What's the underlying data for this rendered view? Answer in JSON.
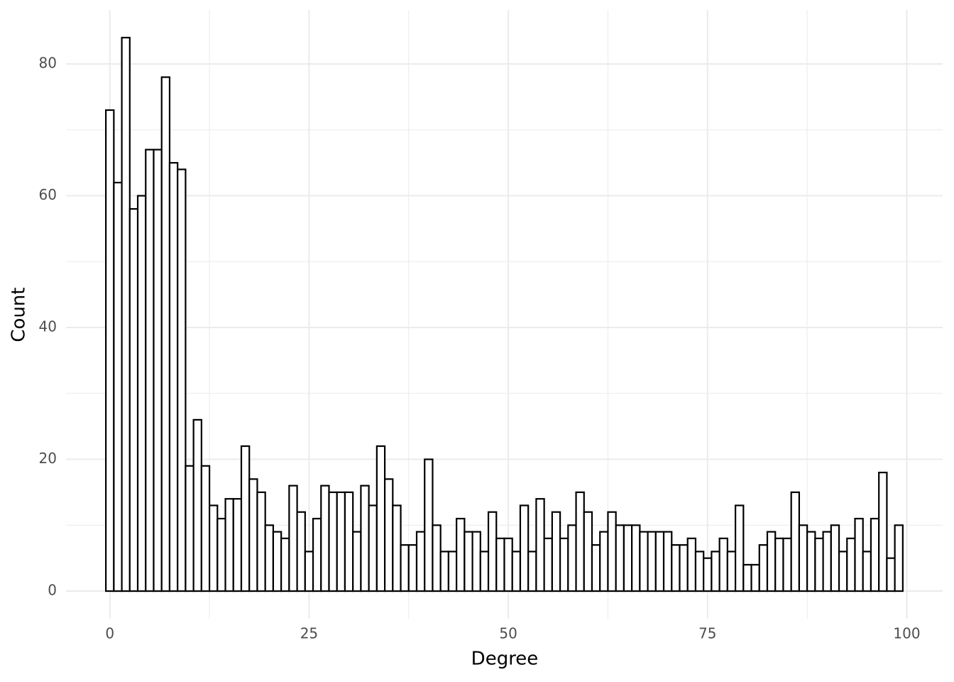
{
  "chart_data": {
    "type": "histogram",
    "x_label": "Degree",
    "y_label": "Count",
    "bins": [
      -0.5,
      0.5,
      1.5,
      2.5,
      3.5,
      4.5,
      5.5,
      6.5,
      7.5,
      8.5,
      9.5,
      10.5,
      11.5,
      12.5,
      13.5,
      14.5,
      15.5,
      16.5,
      17.5,
      18.5,
      19.5,
      20.5,
      21.5,
      22.5,
      23.5,
      24.5,
      25.5,
      26.5,
      27.5,
      28.5,
      29.5,
      30.5,
      31.5,
      32.5,
      33.5,
      34.5,
      35.5,
      36.5,
      37.5,
      38.5,
      39.5,
      40.5,
      41.5,
      42.5,
      43.5,
      44.5,
      45.5,
      46.5,
      47.5,
      48.5,
      49.5,
      50.5,
      51.5,
      52.5,
      53.5,
      54.5,
      55.5,
      56.5,
      57.5,
      58.5,
      59.5,
      60.5,
      61.5,
      62.5,
      63.5,
      64.5,
      65.5,
      66.5,
      67.5,
      68.5,
      69.5,
      70.5,
      71.5,
      72.5,
      73.5,
      74.5,
      75.5,
      76.5,
      77.5,
      78.5,
      79.5,
      80.5,
      81.5,
      82.5,
      83.5,
      84.5,
      85.5,
      86.5,
      87.5,
      88.5,
      89.5,
      90.5,
      91.5,
      92.5,
      93.5,
      94.5,
      95.5,
      96.5,
      97.5,
      98.5,
      99.5
    ],
    "values": [
      73,
      62,
      84,
      58,
      60,
      67,
      67,
      78,
      65,
      64,
      19,
      26,
      19,
      13,
      11,
      14,
      14,
      22,
      17,
      15,
      10,
      9,
      8,
      16,
      12,
      6,
      11,
      16,
      15,
      15,
      15,
      9,
      16,
      13,
      22,
      17,
      13,
      7,
      7,
      9,
      20,
      10,
      6,
      6,
      11,
      9,
      9,
      6,
      12,
      8,
      8,
      6,
      13,
      6,
      14,
      8,
      12,
      8,
      10,
      15,
      12,
      7,
      9,
      12,
      10,
      10,
      10,
      9,
      9,
      9,
      9,
      7,
      7,
      8,
      6,
      5,
      6,
      8,
      6,
      13,
      4,
      4,
      7,
      9,
      8,
      8,
      15,
      10,
      9,
      8,
      9,
      10,
      6,
      8,
      11,
      6,
      11,
      18,
      5,
      10
    ],
    "fill": "#ffffff",
    "stroke": "#000000",
    "xlim": [
      -5.5,
      104.5
    ],
    "xticks": [
      0,
      25,
      50,
      75,
      100
    ],
    "ylim": [
      -4.2,
      88.2
    ],
    "yticks": [
      0,
      20,
      40,
      60,
      80
    ],
    "grid": true
  }
}
